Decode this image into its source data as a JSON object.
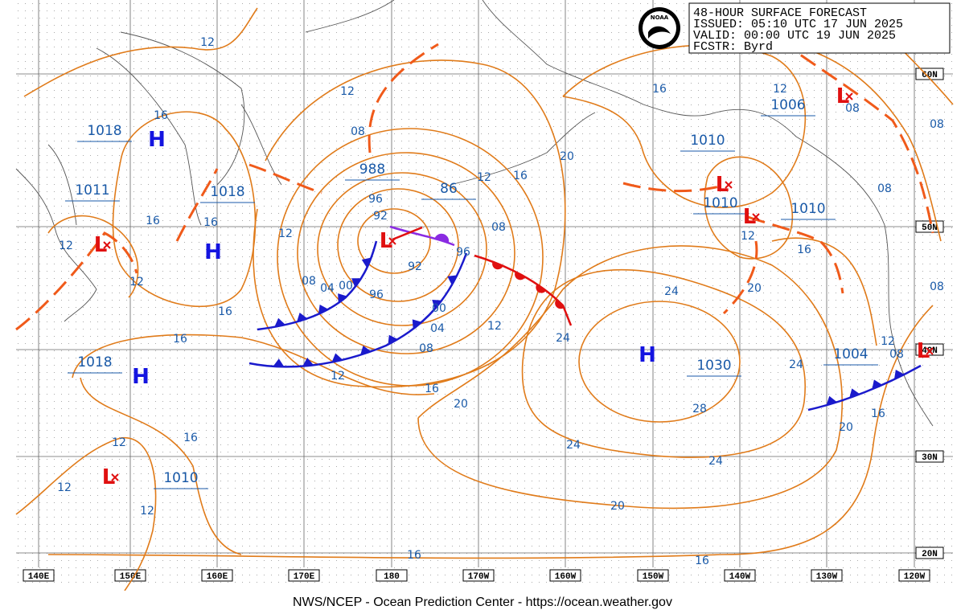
{
  "header": {
    "lines": [
      "48-HOUR SURFACE FORECAST",
      "ISSUED: 05:10 UTC 17 JUN 2025",
      "VALID:  00:00 UTC 19 JUN 2025",
      "FCSTR:  Byrd"
    ]
  },
  "logo": "NOAA",
  "longitudes": [
    "140E",
    "150E",
    "160E",
    "170E",
    "180",
    "170W",
    "160W",
    "150W",
    "140W",
    "130W",
    "120W"
  ],
  "latitudes": [
    "60N",
    "50N",
    "40N",
    "30N",
    "20N"
  ],
  "pressure_labels": [
    "1018",
    "1011",
    "1018",
    "1018",
    "1010",
    "988",
    "86",
    "1010",
    "1010",
    "1010",
    "1006",
    "1030",
    "1004"
  ],
  "center_symbols": [
    "H",
    "L",
    "H",
    "H",
    "L",
    "L",
    "L",
    "L",
    "L",
    "H",
    "L"
  ],
  "isobar_labels": [
    "12",
    "16",
    "16",
    "16",
    "12",
    "12",
    "16",
    "16",
    "12",
    "12",
    "08",
    "96",
    "92",
    "92",
    "96",
    "08",
    "04",
    "00",
    "96",
    "08",
    "12",
    "16",
    "20",
    "16",
    "12",
    "08",
    "08",
    "08",
    "12",
    "16",
    "20",
    "24",
    "24",
    "12",
    "00",
    "04",
    "08",
    "12",
    "16",
    "20",
    "24",
    "24",
    "28",
    "24",
    "20",
    "16",
    "12",
    "08",
    "08",
    "12",
    "16",
    "12",
    "12",
    "20",
    "16",
    "16"
  ],
  "footer": "NWS/NCEP - Ocean Prediction Center - https://ocean.weather.gov"
}
